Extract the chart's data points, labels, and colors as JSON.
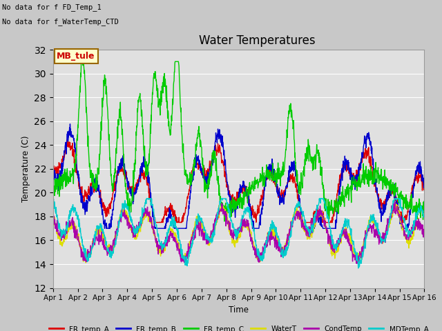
{
  "title": "Water Temperatures",
  "ylabel": "Temperature (C)",
  "xlabel": "Time",
  "annotation_lines": [
    "No data for f FD_Temp_1",
    "No data for f_WaterTemp_CTD"
  ],
  "legend_label": "MB_tule",
  "legend_label_color": "#cc0000",
  "legend_label_bg": "#ffffcc",
  "legend_label_border": "#996600",
  "ylim": [
    12,
    32
  ],
  "yticks": [
    12,
    14,
    16,
    18,
    20,
    22,
    24,
    26,
    28,
    30,
    32
  ],
  "x_labels": [
    "Apr 1",
    "Apr 2",
    "Apr 3",
    "Apr 4",
    "Apr 5",
    "Apr 6",
    "Apr 7",
    "Apr 8",
    "Apr 9",
    "Apr 10",
    "Apr 11",
    "Apr 12",
    "Apr 13",
    "Apr 14",
    "Apr 15",
    "Apr 16"
  ],
  "fig_bg": "#c8c8c8",
  "ax_bg": "#e0e0e0",
  "line_colors": {
    "FR_temp_A": "#dd0000",
    "FR_temp_B": "#0000cc",
    "FR_temp_C": "#00cc00",
    "WaterT": "#dddd00",
    "CondTemp": "#aa00aa",
    "MDTemp_A": "#00cccc"
  },
  "legend_entries": [
    "FR_temp_A",
    "FR_temp_B",
    "FR_temp_C",
    "WaterT",
    "CondTemp",
    "MDTemp_A"
  ]
}
